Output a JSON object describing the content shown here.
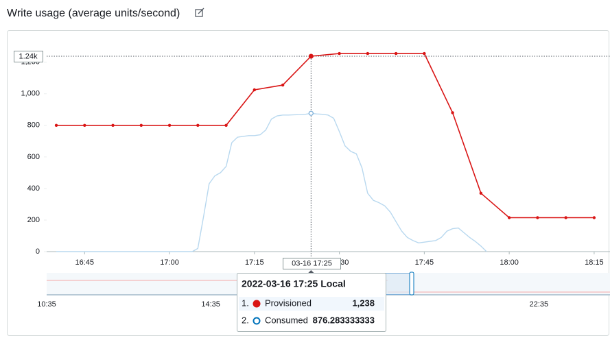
{
  "chart_data": {
    "type": "line",
    "title": "Write usage (average units/second)",
    "xlim": [
      998.3,
      1097.8
    ],
    "xticks": [
      {
        "value": 1005,
        "label": "16:45"
      },
      {
        "value": 1020,
        "label": "17:00"
      },
      {
        "value": 1035,
        "label": "17:15"
      },
      {
        "value": 1050,
        "label": "17:30"
      },
      {
        "value": 1065,
        "label": "17:45"
      },
      {
        "value": 1080,
        "label": "18:00"
      },
      {
        "value": 1095,
        "label": "18:15"
      }
    ],
    "ylim": [
      0,
      1290
    ],
    "yticks": [
      0,
      200,
      400,
      600,
      800,
      {
        "value": 1000,
        "label": "1,000"
      },
      {
        "value": 1200,
        "label": "1,200"
      }
    ],
    "series": [
      {
        "name": "Provisioned",
        "color": "#d91515",
        "x": [
          1000,
          1005,
          1010,
          1015,
          1020,
          1025,
          1030,
          1035,
          1040,
          1045,
          1050,
          1055,
          1060,
          1065,
          1070,
          1075,
          1080,
          1085,
          1090,
          1095
        ],
        "values": [
          800,
          800,
          800,
          800,
          800,
          800,
          800,
          1025,
          1055,
          1238,
          1255,
          1255,
          1255,
          1255,
          880,
          370,
          215,
          215,
          215,
          215
        ]
      },
      {
        "name": "Consumed",
        "color": "#b8d8ef",
        "x": [
          1000,
          1024,
          1025,
          1026,
          1027,
          1028,
          1029,
          1030,
          1031,
          1032,
          1033,
          1034,
          1035,
          1036,
          1037,
          1038,
          1039,
          1040,
          1041,
          1042,
          1043,
          1044,
          1045,
          1046,
          1047,
          1048,
          1049,
          1050,
          1051,
          1052,
          1053,
          1054,
          1055,
          1056,
          1057,
          1058,
          1059,
          1060,
          1061,
          1062,
          1063,
          1064,
          1065,
          1066,
          1067,
          1068,
          1069,
          1070,
          1071,
          1072,
          1073,
          1074,
          1075,
          1076
        ],
        "values": [
          0,
          0,
          20,
          220,
          430,
          480,
          500,
          540,
          690,
          725,
          730,
          735,
          735,
          740,
          770,
          840,
          860,
          865,
          865,
          867,
          868,
          870,
          876.283333333,
          872,
          870,
          865,
          845,
          760,
          670,
          635,
          620,
          530,
          370,
          325,
          310,
          290,
          250,
          190,
          130,
          90,
          70,
          55,
          60,
          65,
          70,
          90,
          130,
          145,
          150,
          120,
          90,
          65,
          35,
          0
        ]
      }
    ],
    "hover": {
      "x": 1045,
      "y": 1238,
      "x_label": "03-16 17:25",
      "y_label": "1.24k",
      "title": "2022-03-16 17:25 Local",
      "rows": [
        {
          "index": "1.",
          "value_label": "1,238"
        },
        {
          "index": "2.",
          "value_label": "876.283333333"
        }
      ]
    },
    "navigator": {
      "xlim": [
        635,
        1459
      ],
      "xticks": [
        {
          "value": 635,
          "label": "10:35"
        },
        {
          "value": 875,
          "label": "14:35"
        },
        {
          "value": 1355,
          "label": "22:35"
        }
      ]
    }
  }
}
